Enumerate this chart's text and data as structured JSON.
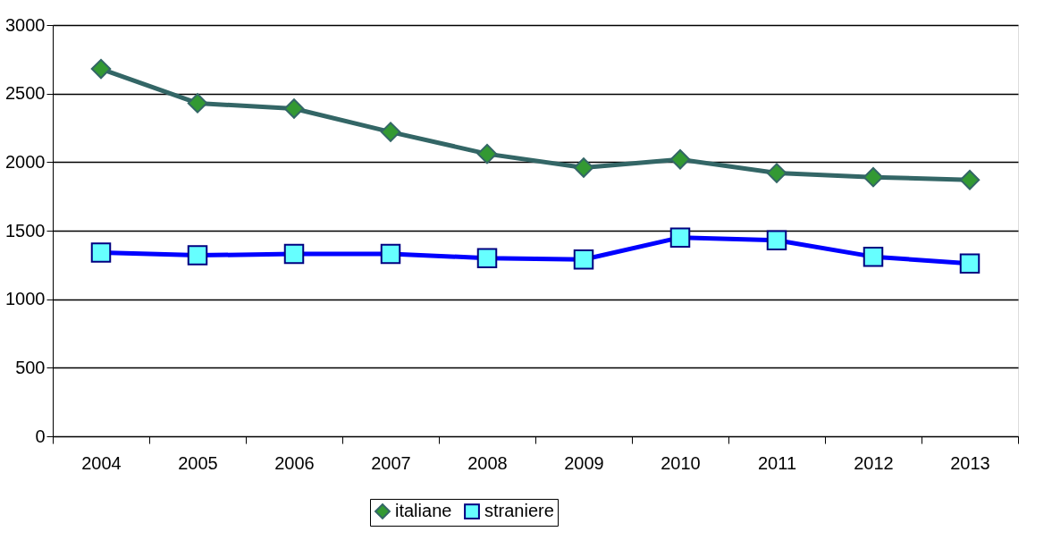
{
  "chart_data": {
    "type": "line",
    "categories": [
      "2004",
      "2005",
      "2006",
      "2007",
      "2008",
      "2009",
      "2010",
      "2011",
      "2012",
      "2013"
    ],
    "series": [
      {
        "name": "italiane",
        "color": "#336666",
        "marker": "diamond",
        "values": [
          2680,
          2430,
          2390,
          2220,
          2060,
          1960,
          2020,
          1920,
          1890,
          1870
        ]
      },
      {
        "name": "straniere",
        "color": "#0000ff",
        "marker": "square",
        "values": [
          1340,
          1320,
          1330,
          1330,
          1300,
          1290,
          1450,
          1430,
          1310,
          1260
        ]
      }
    ],
    "ylim": [
      0,
      3000
    ],
    "yticks": [
      0,
      500,
      1000,
      1500,
      2000,
      2500,
      3000
    ],
    "grid": "y",
    "legend": "bottom",
    "line_style": "solid"
  }
}
